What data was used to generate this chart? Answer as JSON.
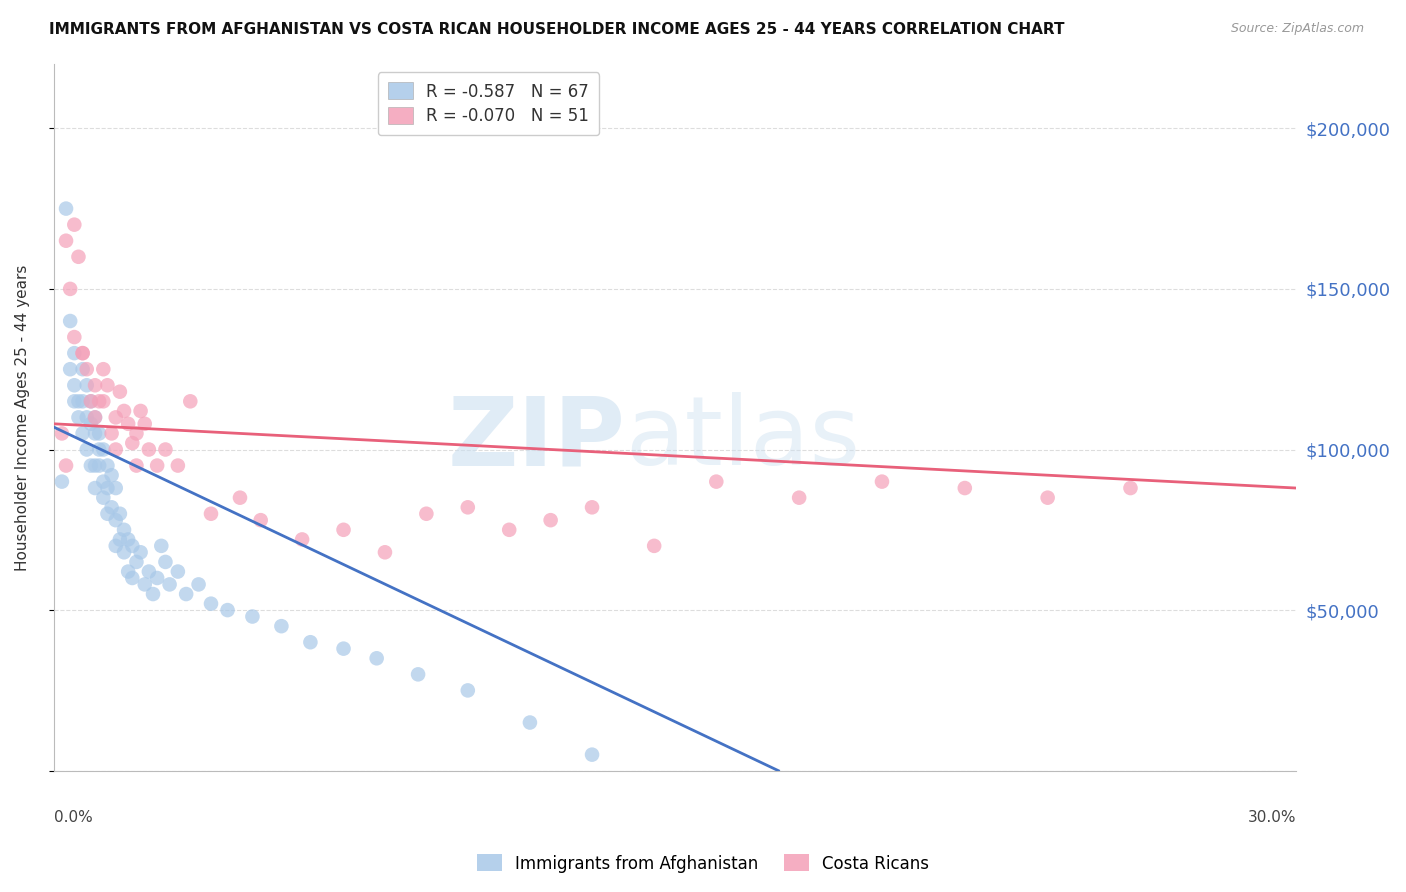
{
  "title": "IMMIGRANTS FROM AFGHANISTAN VS COSTA RICAN HOUSEHOLDER INCOME AGES 25 - 44 YEARS CORRELATION CHART",
  "source": "Source: ZipAtlas.com",
  "ylabel": "Householder Income Ages 25 - 44 years",
  "ytick_values": [
    0,
    50000,
    100000,
    150000,
    200000
  ],
  "xlim": [
    0.0,
    0.3
  ],
  "ylim": [
    0,
    220000
  ],
  "series1_color": "#a8c8e8",
  "series2_color": "#f4a0b8",
  "series1_line_color": "#4472c4",
  "series2_line_color": "#e8607a",
  "background_color": "#ffffff",
  "grid_color": "#dddddd",
  "right_axis_label_color": "#4472c4",
  "legend1_label": "R = -0.587   N = 67",
  "legend2_label": "R = -0.070   N = 51",
  "bottom_legend1": "Immigrants from Afghanistan",
  "bottom_legend2": "Costa Ricans",
  "afghanistan_x": [
    0.002,
    0.003,
    0.004,
    0.004,
    0.005,
    0.005,
    0.005,
    0.006,
    0.006,
    0.007,
    0.007,
    0.007,
    0.008,
    0.008,
    0.008,
    0.009,
    0.009,
    0.009,
    0.01,
    0.01,
    0.01,
    0.01,
    0.011,
    0.011,
    0.011,
    0.012,
    0.012,
    0.012,
    0.013,
    0.013,
    0.013,
    0.014,
    0.014,
    0.015,
    0.015,
    0.015,
    0.016,
    0.016,
    0.017,
    0.017,
    0.018,
    0.018,
    0.019,
    0.019,
    0.02,
    0.021,
    0.022,
    0.023,
    0.024,
    0.025,
    0.026,
    0.027,
    0.028,
    0.03,
    0.032,
    0.035,
    0.038,
    0.042,
    0.048,
    0.055,
    0.062,
    0.07,
    0.078,
    0.088,
    0.1,
    0.115,
    0.13
  ],
  "afghanistan_y": [
    90000,
    175000,
    140000,
    125000,
    130000,
    120000,
    115000,
    115000,
    110000,
    125000,
    115000,
    105000,
    120000,
    110000,
    100000,
    115000,
    108000,
    95000,
    110000,
    105000,
    95000,
    88000,
    100000,
    95000,
    105000,
    100000,
    90000,
    85000,
    95000,
    88000,
    80000,
    92000,
    82000,
    88000,
    78000,
    70000,
    80000,
    72000,
    75000,
    68000,
    72000,
    62000,
    70000,
    60000,
    65000,
    68000,
    58000,
    62000,
    55000,
    60000,
    70000,
    65000,
    58000,
    62000,
    55000,
    58000,
    52000,
    50000,
    48000,
    45000,
    40000,
    38000,
    35000,
    30000,
    25000,
    15000,
    5000
  ],
  "costarica_x": [
    0.002,
    0.003,
    0.004,
    0.005,
    0.006,
    0.007,
    0.008,
    0.009,
    0.01,
    0.01,
    0.011,
    0.012,
    0.012,
    0.013,
    0.014,
    0.015,
    0.016,
    0.017,
    0.018,
    0.019,
    0.02,
    0.021,
    0.022,
    0.023,
    0.025,
    0.027,
    0.03,
    0.033,
    0.038,
    0.045,
    0.05,
    0.06,
    0.07,
    0.08,
    0.09,
    0.1,
    0.11,
    0.12,
    0.13,
    0.145,
    0.16,
    0.18,
    0.2,
    0.22,
    0.24,
    0.26,
    0.003,
    0.005,
    0.007,
    0.015,
    0.02
  ],
  "costarica_y": [
    105000,
    165000,
    150000,
    170000,
    160000,
    130000,
    125000,
    115000,
    120000,
    110000,
    115000,
    125000,
    115000,
    120000,
    105000,
    110000,
    118000,
    112000,
    108000,
    102000,
    105000,
    112000,
    108000,
    100000,
    95000,
    100000,
    95000,
    115000,
    80000,
    85000,
    78000,
    72000,
    75000,
    68000,
    80000,
    82000,
    75000,
    78000,
    82000,
    70000,
    90000,
    85000,
    90000,
    88000,
    85000,
    88000,
    95000,
    135000,
    130000,
    100000,
    95000
  ],
  "afg_line_x0": 0.0,
  "afg_line_y0": 107000,
  "afg_line_x1": 0.175,
  "afg_line_y1": 0,
  "cr_line_x0": 0.0,
  "cr_line_y0": 108000,
  "cr_line_x1": 0.3,
  "cr_line_y1": 88000
}
